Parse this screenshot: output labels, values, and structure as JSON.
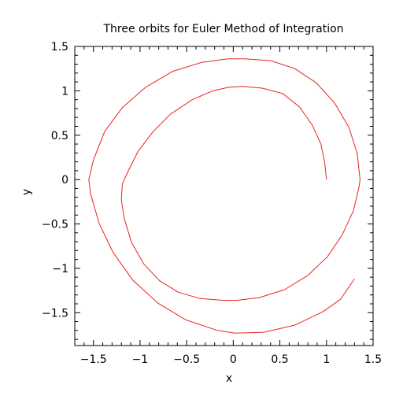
{
  "chart_data": {
    "type": "line",
    "title": "Three orbits for Euler Method of Integration",
    "xlabel": "x",
    "ylabel": "y",
    "xlim": [
      -1.7,
      1.5
    ],
    "ylim": [
      -1.87,
      1.5
    ],
    "grid": false,
    "line_color": "#e8231e",
    "xticks": [
      {
        "value": -1.5,
        "label": "−1.5"
      },
      {
        "value": -1,
        "label": "−1"
      },
      {
        "value": -0.5,
        "label": "−0.5"
      },
      {
        "value": 0,
        "label": "0"
      },
      {
        "value": 0.5,
        "label": "0.5"
      },
      {
        "value": 1,
        "label": "1"
      },
      {
        "value": 1.5,
        "label": "1.5"
      }
    ],
    "yticks": [
      {
        "value": -1.5,
        "label": "−1.5"
      },
      {
        "value": -1,
        "label": "−1"
      },
      {
        "value": -0.5,
        "label": "−0.5"
      },
      {
        "value": 0,
        "label": "0"
      },
      {
        "value": 0.5,
        "label": "0.5"
      },
      {
        "value": 1,
        "label": "1"
      },
      {
        "value": 1.5,
        "label": "1.5"
      }
    ],
    "series": [
      {
        "x": [
          1.0,
          0.98,
          0.94,
          0.85,
          0.71,
          0.53,
          0.31,
          0.1,
          -0.05,
          -0.22,
          -0.44,
          -0.67,
          -0.86,
          -1.02,
          -1.13,
          -1.19,
          -1.2,
          -1.17,
          -1.09,
          -0.96,
          -0.79,
          -0.59,
          -0.36,
          -0.11,
          0.04,
          0.28,
          0.55,
          0.8,
          1.01,
          1.17,
          1.29,
          1.35,
          1.36,
          1.33,
          1.24,
          1.09,
          0.89,
          0.66,
          0.4,
          0.12,
          -0.06,
          -0.34,
          -0.65,
          -0.94,
          -1.19,
          -1.38,
          -1.5,
          -1.55,
          -1.53,
          -1.44,
          -1.29,
          -1.08,
          -0.81,
          -0.51,
          -0.17,
          0.02,
          0.33,
          0.66,
          0.96,
          1.15,
          1.3
        ],
        "y": [
          0.0,
          0.2,
          0.4,
          0.61,
          0.82,
          0.97,
          1.03,
          1.05,
          1.04,
          1.0,
          0.9,
          0.74,
          0.54,
          0.32,
          0.09,
          -0.05,
          -0.23,
          -0.44,
          -0.71,
          -0.95,
          -1.14,
          -1.27,
          -1.34,
          -1.36,
          -1.36,
          -1.33,
          -1.24,
          -1.08,
          -0.87,
          -0.62,
          -0.35,
          -0.08,
          0.0,
          0.29,
          0.59,
          0.86,
          1.09,
          1.25,
          1.34,
          1.36,
          1.36,
          1.32,
          1.22,
          1.04,
          0.81,
          0.54,
          0.22,
          0.0,
          -0.16,
          -0.49,
          -0.82,
          -1.13,
          -1.39,
          -1.58,
          -1.7,
          -1.73,
          -1.72,
          -1.64,
          -1.49,
          -1.35,
          -1.12
        ]
      }
    ]
  }
}
